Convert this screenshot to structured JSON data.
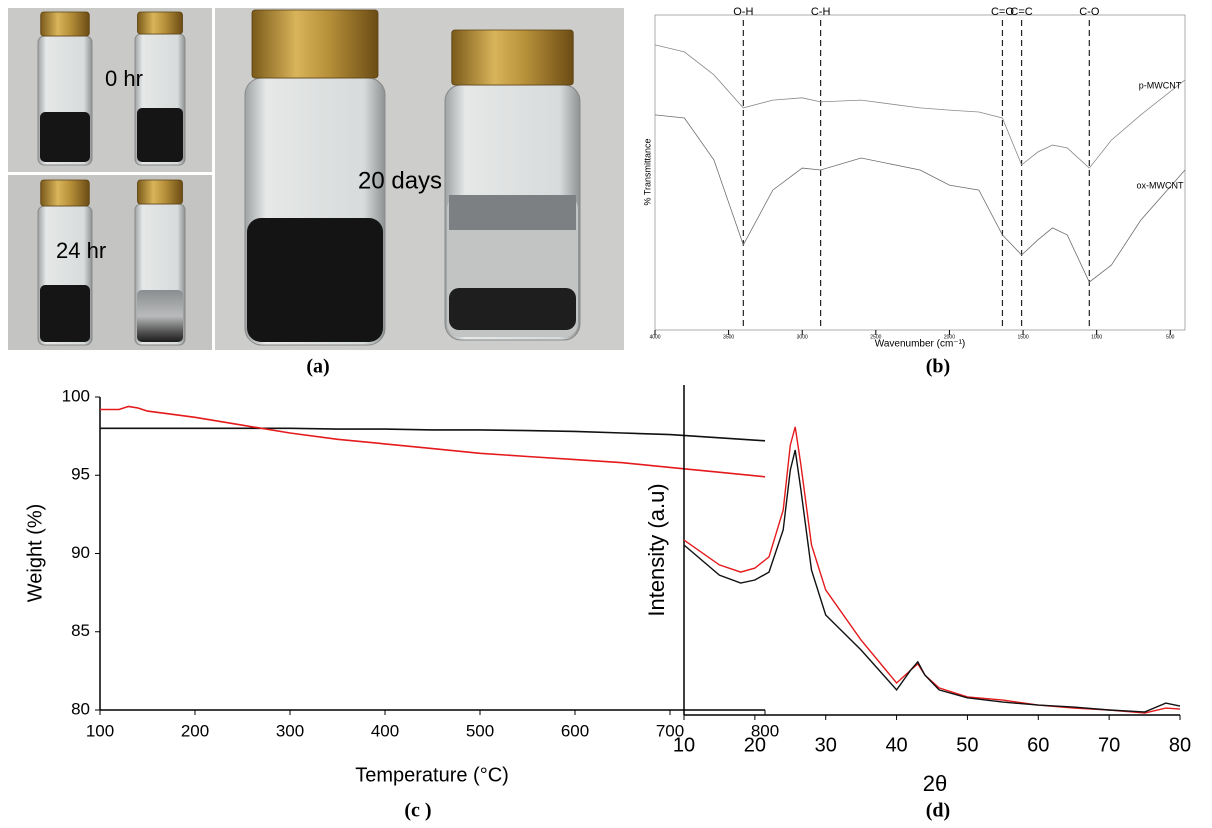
{
  "photo": {
    "labels": [
      "0 hr",
      "24 hr",
      "20 days"
    ],
    "caption": "(a)"
  },
  "chart_data": [
    {
      "type": "line",
      "caption": "(b)",
      "xlabel": "Wavenumber (cm⁻¹)",
      "ylabel": "% Transmittance",
      "xlim": [
        4000,
        400
      ],
      "ylim": [
        0,
        100
      ],
      "xticks": [
        4000,
        3500,
        3000,
        2500,
        2000,
        1500,
        1000,
        500
      ],
      "x": [
        4000,
        3800,
        3600,
        3400,
        3200,
        3000,
        2875,
        2600,
        2200,
        2000,
        1800,
        1640,
        1510,
        1400,
        1300,
        1200,
        1050,
        900,
        700,
        400
      ],
      "series": [
        {
          "name": "p-MWCNT",
          "color": "#8a8a8a",
          "values": [
            90.5,
            88.3,
            81,
            70.5,
            73,
            73.7,
            72.4,
            73,
            70.5,
            69.8,
            69.2,
            67.3,
            52.4,
            56.5,
            58.7,
            57.8,
            51.4,
            60.3,
            68.3,
            79.4
          ]
        },
        {
          "name": "ox-MWCNT",
          "color": "#6e6e6e",
          "values": [
            68.3,
            67.3,
            54,
            27,
            44.4,
            51.4,
            50.8,
            54.6,
            50.8,
            46,
            44.4,
            30.2,
            23.8,
            28.6,
            32.4,
            30.2,
            15.2,
            20.6,
            34.9,
            50.8
          ]
        }
      ],
      "annotations": [
        {
          "text": "O-H",
          "x": 3400
        },
        {
          "text": "C-H",
          "x": 2875
        },
        {
          "text": "C=O",
          "x": 1640
        },
        {
          "text": "C=C",
          "x": 1510
        },
        {
          "text": "C-O",
          "x": 1050
        }
      ]
    },
    {
      "type": "line",
      "caption": "(c )",
      "xlabel": "Temperature (°C)",
      "ylabel": "Weight (%)",
      "xlim": [
        100,
        800
      ],
      "ylim": [
        80,
        100
      ],
      "xticks": [
        100,
        200,
        300,
        400,
        500,
        600,
        700,
        800
      ],
      "yticks": [
        80,
        85,
        90,
        95,
        100
      ],
      "x": [
        100,
        120,
        130,
        140,
        150,
        200,
        250,
        300,
        350,
        400,
        450,
        500,
        550,
        600,
        650,
        700,
        750,
        800
      ],
      "series": [
        {
          "color": "#111111",
          "values": [
            98.0,
            98.0,
            98.0,
            98.0,
            98.0,
            98.0,
            98.0,
            98.0,
            97.95,
            97.95,
            97.9,
            97.9,
            97.85,
            97.8,
            97.7,
            97.6,
            97.4,
            97.2
          ]
        },
        {
          "color": "#e41a1c",
          "values": [
            99.2,
            99.2,
            99.4,
            99.3,
            99.1,
            98.7,
            98.2,
            97.7,
            97.3,
            97.0,
            96.7,
            96.4,
            96.2,
            96.0,
            95.8,
            95.5,
            95.2,
            94.9
          ]
        }
      ]
    },
    {
      "type": "line",
      "caption": "(d)",
      "xlabel": "2θ",
      "ylabel": "Intensity (a.u)",
      "xlim": [
        10,
        80
      ],
      "ylim": [
        0,
        100
      ],
      "xticks": [
        10,
        20,
        30,
        40,
        50,
        60,
        70,
        80
      ],
      "x": [
        10,
        15,
        18,
        20,
        22,
        24,
        25,
        25.7,
        26.5,
        28,
        30,
        35,
        40,
        42,
        43,
        44,
        46,
        50,
        55,
        60,
        65,
        70,
        75,
        78,
        80
      ],
      "series": [
        {
          "color": "#e41a1c",
          "values": [
            53,
            45.5,
            43.3,
            44.5,
            47.9,
            62.1,
            81.8,
            87.3,
            75.8,
            51.5,
            37.9,
            22.7,
            9.7,
            13.6,
            15.5,
            12.1,
            8.2,
            5.5,
            4.5,
            3,
            2.1,
            1.5,
            0.6,
            2.1,
            1.8
          ]
        },
        {
          "color": "#111111",
          "values": [
            51.5,
            42.4,
            40,
            40.9,
            43.3,
            56.1,
            74.2,
            80.3,
            68.2,
            43.9,
            30.3,
            19.7,
            7.6,
            13.6,
            16.1,
            12.1,
            7.6,
            5.2,
            3.9,
            3,
            2.4,
            1.5,
            0.9,
            3.6,
            2.7
          ]
        }
      ]
    }
  ]
}
